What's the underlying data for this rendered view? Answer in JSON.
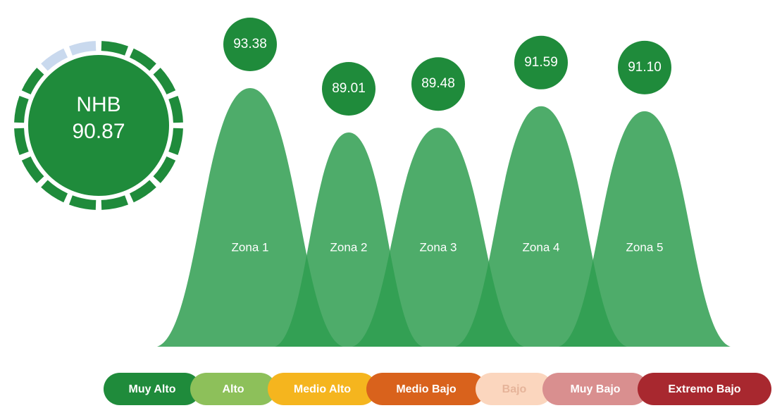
{
  "chart_data": {
    "type": "bell",
    "gauge": {
      "label": "NHB",
      "value": 90.87,
      "color": "#1f8b3b",
      "empty_color": "#c9d9ee"
    },
    "categories": [
      "Zona 1",
      "Zona 2",
      "Zona 3",
      "Zona 4",
      "Zona 5"
    ],
    "values": [
      93.38,
      89.01,
      89.48,
      91.59,
      91.1
    ],
    "value_labels": [
      "93.38",
      "89.01",
      "89.48",
      "91.59",
      "91.10"
    ],
    "color": "#2f9d50",
    "bubble_color": "#1f8b3b",
    "legend": [
      {
        "name": "Muy Alto",
        "color": "#1f8b3b",
        "text_color": "#ffffff"
      },
      {
        "name": "Alto",
        "color": "#8dc05a",
        "text_color": "#ffffff"
      },
      {
        "name": "Medio Alto",
        "color": "#f5b51e",
        "text_color": "#ffffff"
      },
      {
        "name": "Medio Bajo",
        "color": "#d9621c",
        "text_color": "#ffffff"
      },
      {
        "name": "Bajo",
        "color": "#fbd6be",
        "text_color": "#e6b49a"
      },
      {
        "name": "Muy Bajo",
        "color": "#d98f8f",
        "text_color": "#ffffff"
      },
      {
        "name": "Extremo Bajo",
        "color": "#a8282f",
        "text_color": "#ffffff"
      }
    ]
  }
}
